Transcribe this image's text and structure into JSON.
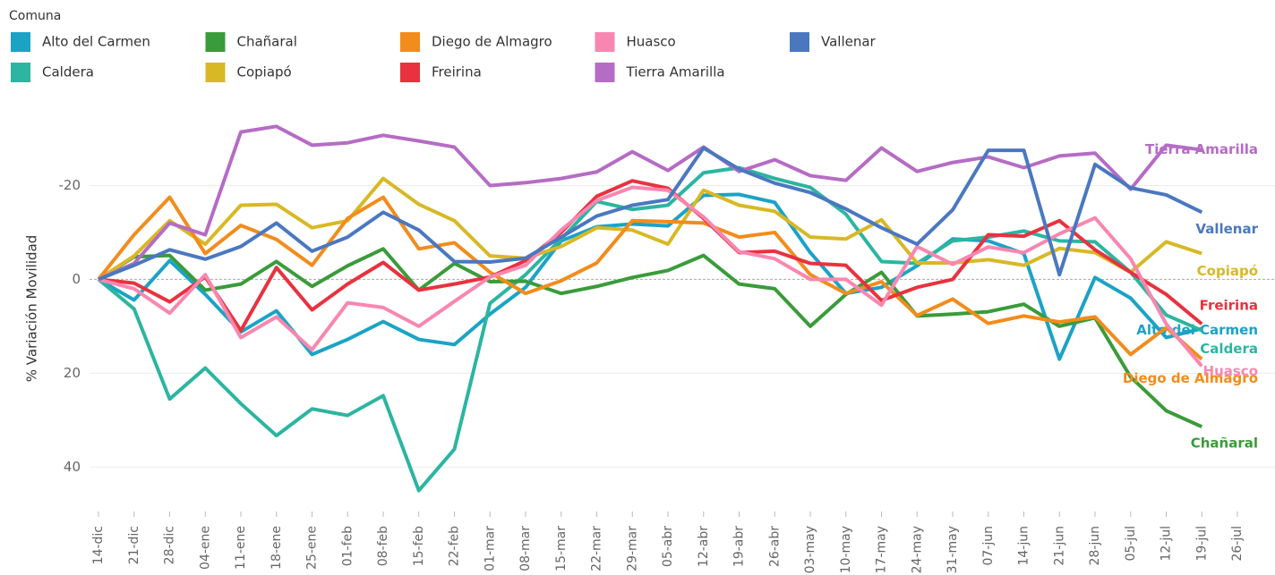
{
  "chart_data": {
    "type": "line",
    "legend_title": "Comuna",
    "y_label": "% Variación Movilidad",
    "ylim": [
      -38,
      51
    ],
    "yticks": [
      -20,
      0,
      20,
      40
    ],
    "y_reversed": true,
    "grid": true,
    "zero_line": true,
    "categories": [
      "14-dic",
      "21-dic",
      "28-dic",
      "04-ene",
      "11-ene",
      "18-ene",
      "25-ene",
      "01-feb",
      "08-feb",
      "15-feb",
      "22-feb",
      "01-mar",
      "08-mar",
      "15-mar",
      "22-mar",
      "29-mar",
      "05-abr",
      "12-abr",
      "19-abr",
      "26-abr",
      "03-may",
      "10-may",
      "17-may",
      "24-may",
      "31-may",
      "07-jun",
      "14-jun",
      "21-jun",
      "28-jun",
      "05-jul",
      "12-jul",
      "19-jul",
      "26-jul"
    ],
    "series": [
      {
        "name": "Alto del Carmen",
        "color": "#1ba3c6",
        "values": [
          0,
          4.4,
          -4,
          3.2,
          11.2,
          6.7,
          16,
          12.8,
          9,
          12.8,
          13.9,
          7.4,
          1.7,
          -8.2,
          -11.2,
          -11.8,
          -11.4,
          -17.9,
          -18.1,
          -16.4,
          -5.7,
          3,
          1.7,
          -2.9,
          -8.6,
          -8.2,
          -5.5,
          17,
          -0.4,
          4,
          12.4,
          10.5,
          null
        ]
      },
      {
        "name": "Caldera",
        "color": "#2cb5a0",
        "values": [
          0,
          6.3,
          25.5,
          18.9,
          26.5,
          33.3,
          27.6,
          29,
          24.8,
          45,
          36.2,
          5.1,
          -1,
          -8.6,
          -16.6,
          -14.9,
          -15.8,
          -22.7,
          -23.8,
          -21.5,
          -19.6,
          -13.9,
          -3.8,
          -3.4,
          -8.2,
          -9,
          -10.3,
          -8.2,
          -8,
          -1.5,
          7.6,
          10.9,
          null
        ]
      },
      {
        "name": "Chañaral",
        "color": "#3a9b3a",
        "values": [
          0,
          -4.8,
          -5.1,
          2.3,
          1,
          -3.8,
          1.5,
          -2.9,
          -6.5,
          2.3,
          -3.4,
          0.5,
          0.4,
          3,
          1.5,
          -0.4,
          -1.9,
          -5.1,
          1,
          2,
          10,
          3.2,
          -1.5,
          7.8,
          7.4,
          6.9,
          5.3,
          10,
          8.2,
          20.8,
          28,
          31.4,
          null
        ]
      },
      {
        "name": "Copiapó",
        "color": "#d8b825",
        "values": [
          0,
          -5,
          -12.5,
          -7.5,
          -15.8,
          -16,
          -11,
          -12.5,
          -21.5,
          -16,
          -12.5,
          -5,
          -4.5,
          -7,
          -11,
          -10.5,
          -7.5,
          -19,
          -15.8,
          -14.5,
          -9,
          -8.6,
          -12.7,
          -3.5,
          -3.5,
          -4.2,
          -3,
          -6.6,
          -5.7,
          -1.5,
          -8,
          -5.5,
          null
        ]
      },
      {
        "name": "Diego de Almagro",
        "color": "#f28c1c",
        "values": [
          0,
          -9.5,
          -17.5,
          -5.5,
          -11.5,
          -8.5,
          -3,
          -13,
          -17.5,
          -6.5,
          -7.8,
          -1.5,
          3,
          0.3,
          -3.5,
          -12.5,
          -12.3,
          -12,
          -9,
          -10,
          -1,
          3,
          0.5,
          7.7,
          4.2,
          9.4,
          7.8,
          9.1,
          8,
          16,
          10.3,
          17,
          null
        ]
      },
      {
        "name": "Freirina",
        "color": "#e8323f",
        "values": [
          0,
          0.8,
          4.8,
          -0.5,
          10.9,
          -2.5,
          6.5,
          1,
          -3.6,
          2.3,
          1,
          -0.5,
          -4,
          -10,
          -17.7,
          -21,
          -19.4,
          -13,
          -5.7,
          -6,
          -3.4,
          -3,
          4.5,
          1.7,
          0,
          -9.5,
          -9.2,
          -12.5,
          -6.3,
          -1.5,
          3.2,
          9.5,
          null
        ]
      },
      {
        "name": "Huasco",
        "color": "#f887b0",
        "values": [
          0,
          2,
          7.2,
          -1,
          12.4,
          8,
          15,
          5,
          6,
          10,
          4.7,
          -0.5,
          -3,
          -10.5,
          -16.8,
          -19.6,
          -19,
          -13.3,
          -5.9,
          -4.4,
          0,
          0,
          5.5,
          -7,
          -3.2,
          -6.9,
          -5.7,
          -9.7,
          -13.1,
          -4.4,
          9.5,
          18.5,
          null
        ]
      },
      {
        "name": "Tierra Amarilla",
        "color": "#b56cc4",
        "values": [
          0,
          -3.4,
          -12,
          -9.5,
          -31.4,
          -32.6,
          -28.6,
          -29.1,
          -30.7,
          -29.5,
          -28.2,
          -20,
          -20.6,
          -21.5,
          -22.9,
          -27.2,
          -23.2,
          -28.2,
          -23,
          -25.5,
          -22.1,
          -21.1,
          -28,
          -23,
          -24.9,
          -26.1,
          -23.8,
          -26.3,
          -26.9,
          -19.2,
          -28.6,
          -27.6,
          null
        ]
      },
      {
        "name": "Vallenar",
        "color": "#4a78c0",
        "values": [
          0,
          -3,
          -6.3,
          -4.3,
          -7,
          -12,
          -6,
          -9,
          -14.3,
          -10.5,
          -3.8,
          -3.7,
          -4.5,
          -9,
          -13.5,
          -15.8,
          -17,
          -28,
          -23.5,
          -20.5,
          -18.5,
          -15,
          -11,
          -7.5,
          -14.8,
          -27.5,
          -27.5,
          -1,
          -24.5,
          -19.5,
          -18,
          -14.3,
          null
        ]
      }
    ]
  }
}
